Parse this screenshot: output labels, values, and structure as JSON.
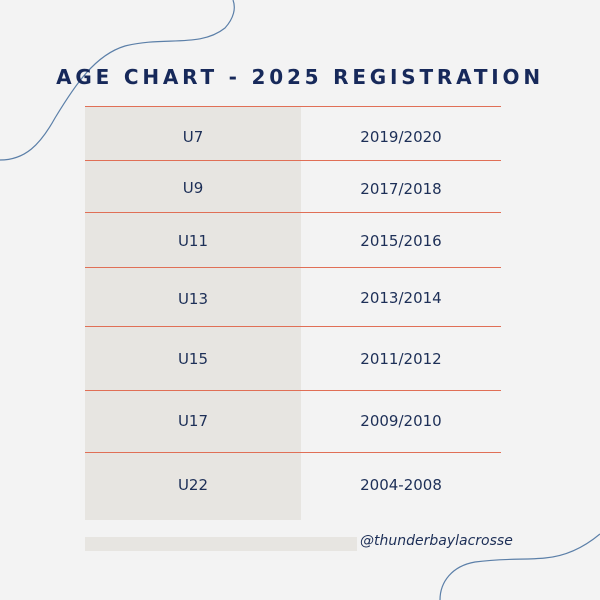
{
  "title": "AGE CHART - 2025 REGISTRATION",
  "rows": [
    {
      "age": "U7",
      "years": "2019/2020"
    },
    {
      "age": "U9",
      "years": "2017/2018"
    },
    {
      "age": "U11",
      "years": "2015/2016"
    },
    {
      "age": "U13",
      "years": "2013/2014"
    },
    {
      "age": "U15",
      "years": "2011/2012"
    },
    {
      "age": "U17",
      "years": "2009/2010"
    },
    {
      "age": "U22",
      "years": "2004-2008"
    }
  ],
  "footer": {
    "handle": "@thunderbaylacrosse"
  },
  "colors": {
    "background": "#f3f3f3",
    "title": "#17295a",
    "text": "#1d2f57",
    "divider": "#e06f56",
    "left_column": "#e7e5e1",
    "decor_line": "#5b7fa8"
  }
}
